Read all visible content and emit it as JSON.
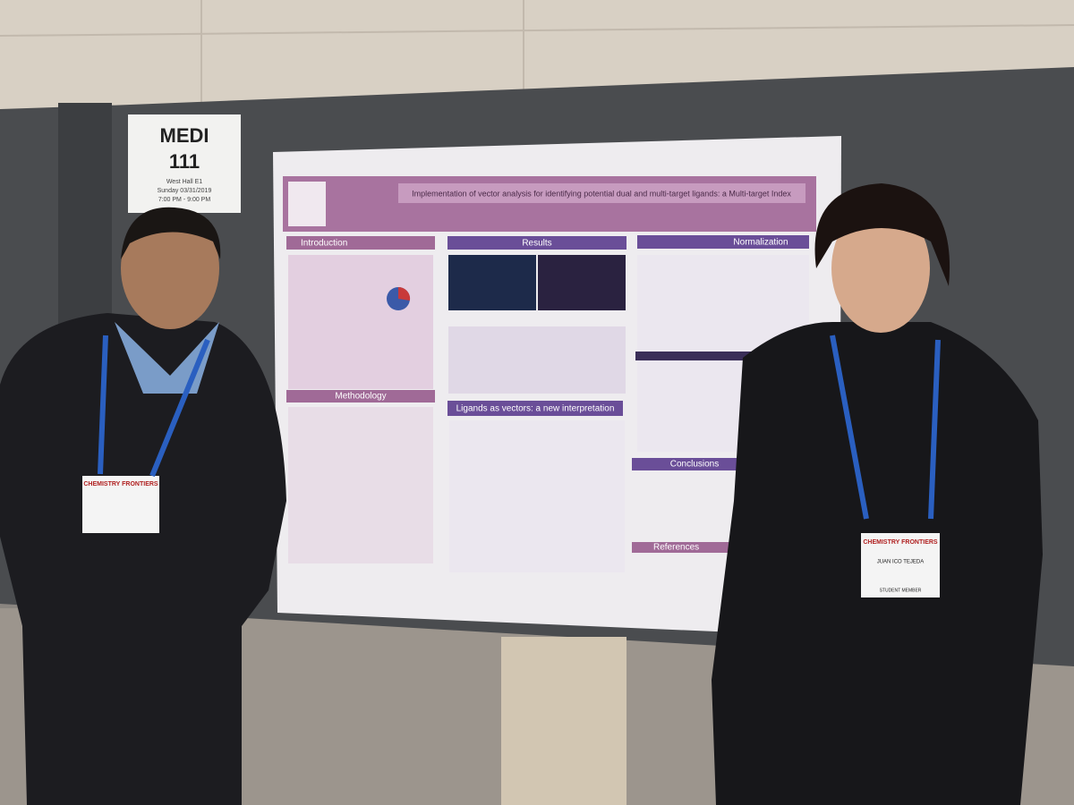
{
  "sign": {
    "title": "MEDI",
    "number": "111",
    "location": "West Hall E1",
    "date": "Sunday 03/31/2019",
    "time": "7:00 PM - 9:00 PM"
  },
  "poster": {
    "title": "Implementation of vector analysis for identifying potential dual and multi-target ligands: a Multi-target Index",
    "sections": [
      "Introduction",
      "Results",
      "Normalization",
      "Methodology",
      "Ligands as vectors: a new interpretation",
      "Conclusions",
      "References"
    ]
  },
  "badges": {
    "left": {
      "event": "CHEMISTRY FRONTIERS"
    },
    "right": {
      "event": "CHEMISTRY FRONTIERS",
      "name": "JUAN ICO TEJEDA",
      "role": "STUDENT MEMBER"
    }
  }
}
